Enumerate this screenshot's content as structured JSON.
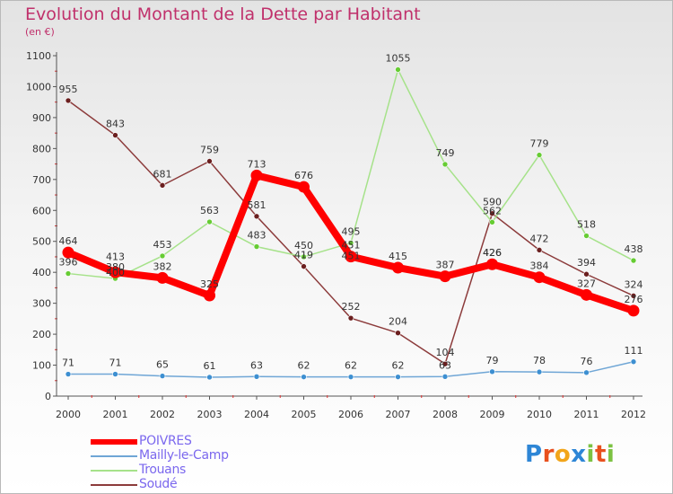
{
  "chart_data": {
    "type": "line",
    "title": "Evolution du Montant de la Dette par Habitant",
    "subtitle": "(en €)",
    "categories": [
      "2000",
      "2001",
      "2002",
      "2003",
      "2004",
      "2005",
      "2006",
      "2007",
      "2008",
      "2009",
      "2010",
      "2011",
      "2012"
    ],
    "ylim": [
      0,
      1100
    ],
    "yticks": [
      0,
      100,
      200,
      300,
      400,
      500,
      600,
      700,
      800,
      900,
      1000,
      1100
    ],
    "series": [
      {
        "name": "POIVRES",
        "color": "#ff0000",
        "marker": "#ff0000",
        "values": [
          464,
          400,
          382,
          325,
          713,
          676,
          451,
          415,
          387,
          426,
          384,
          327,
          276
        ]
      },
      {
        "name": "Mailly-le-Camp",
        "color": "#6fa6d6",
        "marker": "#3d8fd1",
        "values": [
          71,
          71,
          65,
          61,
          63,
          62,
          62,
          62,
          63,
          79,
          78,
          76,
          111
        ]
      },
      {
        "name": "Trouans",
        "color": "#a6e28a",
        "marker": "#66cc33",
        "values": [
          396,
          380,
          453,
          563,
          483,
          450,
          495,
          1055,
          749,
          562,
          779,
          518,
          438
        ]
      },
      {
        "name": "Soudé",
        "color": "#8c3b3b",
        "marker": "#6b1f1f",
        "values": [
          955,
          843,
          681,
          759,
          581,
          419,
          252,
          204,
          104,
          590,
          472,
          394,
          324
        ]
      }
    ],
    "labels": [
      {
        "series": 0,
        "texts": [
          "464",
          "",
          "382",
          "325",
          "713",
          "676",
          "451",
          "415",
          "387",
          "426",
          "384",
          "327",
          "276"
        ]
      },
      {
        "series": 1,
        "texts": [
          "71",
          "71",
          "65",
          "61",
          "63",
          "62",
          "62",
          "62",
          "63",
          "79",
          "78",
          "76",
          "111"
        ]
      },
      {
        "series": 2,
        "texts": [
          "396",
          "380",
          "453",
          "563",
          "483",
          "450",
          "495",
          "1055",
          "749",
          "562",
          "779",
          "518",
          "438"
        ]
      },
      {
        "series": 3,
        "texts": [
          "955",
          "843",
          "681",
          "759",
          "581",
          "419",
          "252",
          "204",
          "104",
          "590",
          "472",
          "394",
          "324"
        ]
      }
    ],
    "extra_labels": [
      "400",
      "413",
      "451",
      "426"
    ],
    "legend_position": "bottom-left"
  },
  "legend": [
    {
      "label": "POIVRES",
      "color": "#ff0000"
    },
    {
      "label": "Mailly-le-Camp",
      "color": "#6fa6d6"
    },
    {
      "label": "Trouans",
      "color": "#a6e28a"
    },
    {
      "label": "Soudé",
      "color": "#8c3b3b"
    }
  ],
  "logo": {
    "letters": [
      "P",
      "r",
      "o",
      "x",
      "i",
      "t",
      "i"
    ],
    "colors": [
      "#2e86d6",
      "#e8501e",
      "#f2a51a",
      "#2e86d6",
      "#7cc242",
      "#e8501e",
      "#7cc242"
    ]
  }
}
